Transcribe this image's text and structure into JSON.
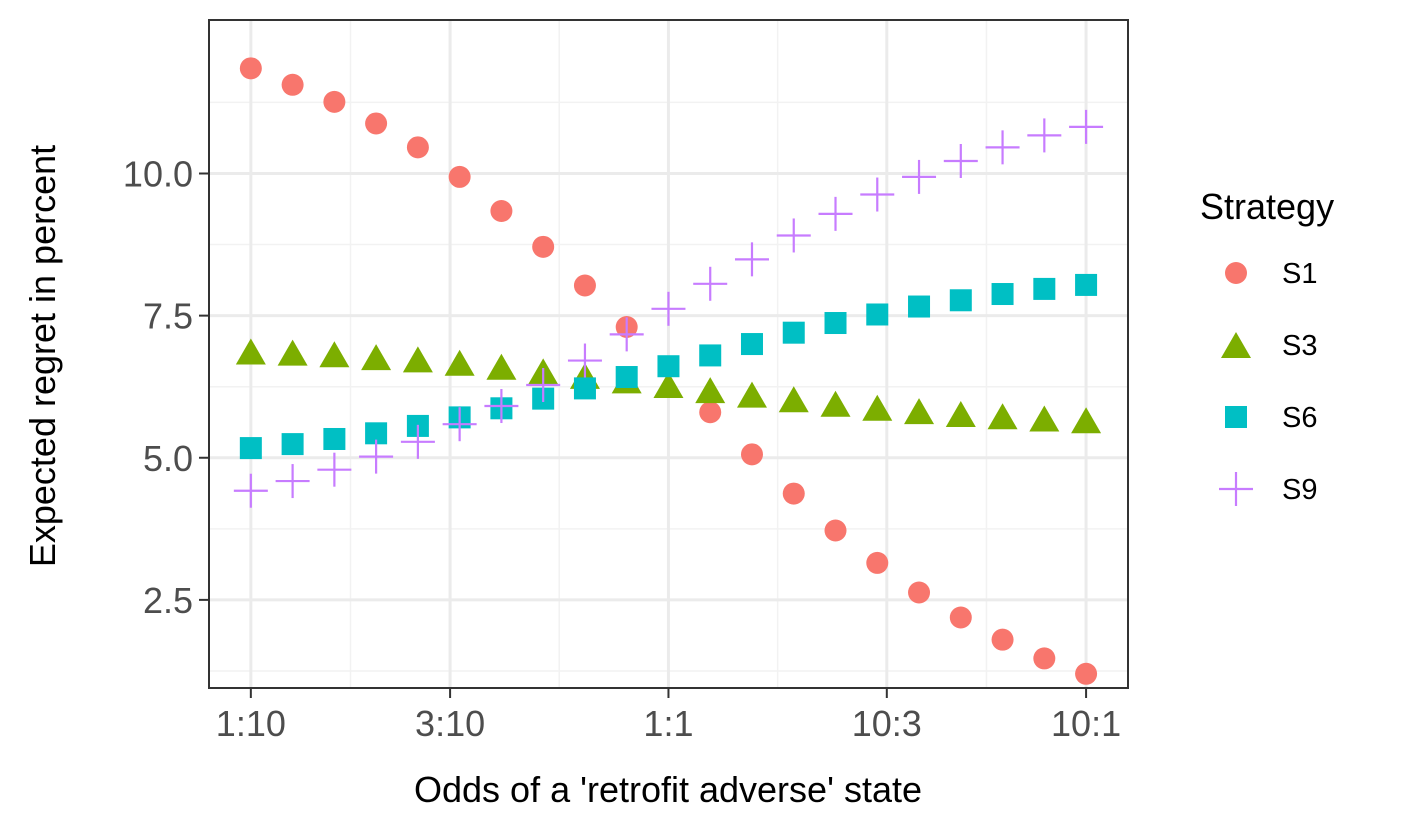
{
  "chart_data": {
    "type": "scatter",
    "xlabel": "Odds of a 'retrofit adverse' state",
    "ylabel": "Expected regret in percent",
    "x_scale": "log10",
    "x_ticks": [
      {
        "value": 0.1,
        "label": "1:10"
      },
      {
        "value": 0.3,
        "label": "3:10"
      },
      {
        "value": 1,
        "label": "1:1"
      },
      {
        "value": 3.333,
        "label": "10:3"
      },
      {
        "value": 10,
        "label": "10:1"
      }
    ],
    "y_ticks": [
      {
        "value": 2.5,
        "label": "2.5"
      },
      {
        "value": 5.0,
        "label": "5.0"
      },
      {
        "value": 7.5,
        "label": "7.5"
      },
      {
        "value": 10.0,
        "label": "10.0"
      }
    ],
    "xlim": [
      0.0794,
      12.6
    ],
    "ylim": [
      0.95,
      12.7
    ],
    "grid": true,
    "legend": {
      "title": "Strategy",
      "position": "right"
    },
    "x": [
      0.1,
      0.1259,
      0.1585,
      0.1995,
      0.2512,
      0.3162,
      0.3981,
      0.5012,
      0.631,
      0.7943,
      1.0,
      1.2589,
      1.5849,
      1.9953,
      2.5119,
      3.1623,
      3.9811,
      5.0119,
      6.3096,
      7.9433,
      10.0
    ],
    "series": [
      {
        "name": "S1",
        "shape": "circle",
        "color": "#F8766D",
        "values": [
          11.85,
          11.56,
          11.26,
          10.88,
          10.46,
          9.94,
          9.34,
          8.71,
          8.03,
          7.3,
          null,
          5.8,
          5.06,
          4.37,
          3.72,
          3.15,
          2.63,
          2.19,
          1.8,
          1.47,
          1.2
        ]
      },
      {
        "name": "S3",
        "shape": "triangle",
        "color": "#7CAE00",
        "values": [
          6.87,
          6.85,
          6.82,
          6.77,
          6.73,
          6.67,
          6.6,
          6.52,
          6.44,
          6.36,
          6.28,
          6.19,
          6.11,
          6.03,
          5.95,
          5.88,
          5.82,
          5.77,
          5.73,
          5.69,
          5.66
        ]
      },
      {
        "name": "S6",
        "shape": "square",
        "color": "#00BFC4",
        "values": [
          5.17,
          5.24,
          5.33,
          5.43,
          5.56,
          5.71,
          5.87,
          6.04,
          6.22,
          6.42,
          6.61,
          6.8,
          7.0,
          7.2,
          7.37,
          7.52,
          7.66,
          7.77,
          7.88,
          7.97,
          8.04
        ]
      },
      {
        "name": "S9",
        "shape": "plus",
        "color": "#C77CFF",
        "values": [
          4.42,
          4.59,
          4.79,
          5.02,
          5.28,
          5.59,
          5.91,
          6.28,
          6.71,
          7.17,
          7.62,
          8.06,
          8.49,
          8.91,
          9.29,
          9.63,
          9.94,
          10.22,
          10.46,
          10.67,
          10.82
        ]
      }
    ]
  }
}
